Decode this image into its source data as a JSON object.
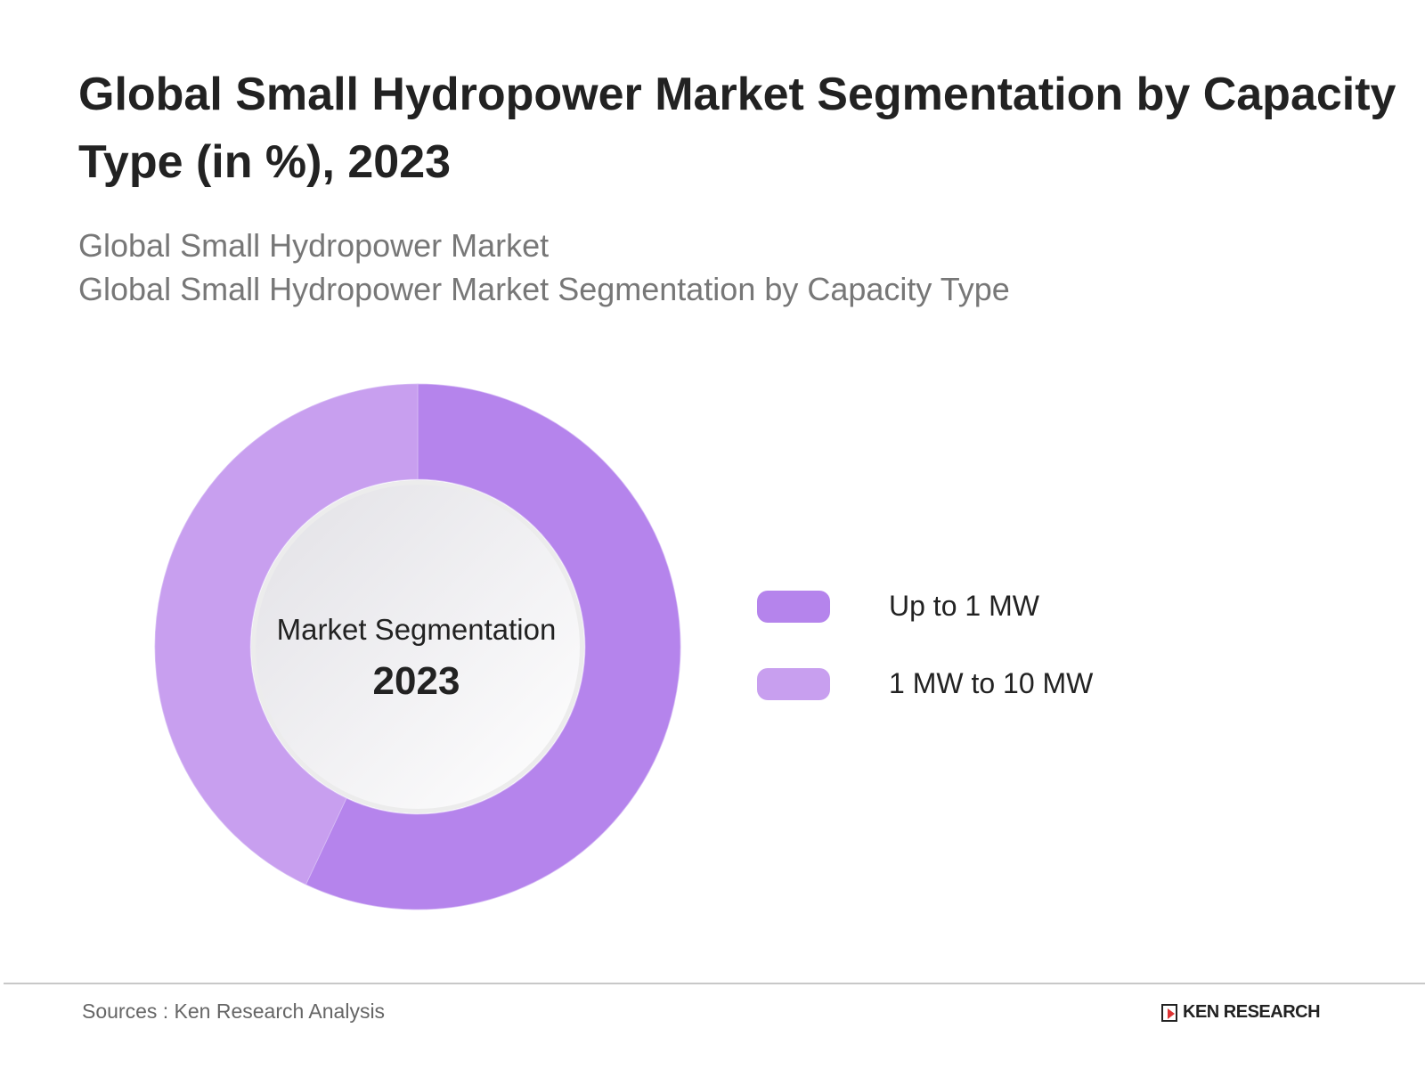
{
  "chart_data": {
    "type": "pie",
    "variant": "donut",
    "title": "Global Small Hydropower Market Segmentation by Capacity Type (in %), 2023",
    "subtitle_lines": [
      "Global Small Hydropower Market",
      "Global Small Hydropower Market Segmentation by Capacity Type"
    ],
    "center_label": "Market Segmentation",
    "center_year": "2023",
    "categories": [
      "Up to 1 MW",
      "1 MW to 10 MW"
    ],
    "values": [
      57,
      43
    ],
    "colors": [
      "#B584EC",
      "#C89FEF"
    ],
    "legend_position": "right"
  },
  "footer": {
    "source": "Sources : Ken Research Analysis",
    "logo": "KEN RESEARCH"
  }
}
